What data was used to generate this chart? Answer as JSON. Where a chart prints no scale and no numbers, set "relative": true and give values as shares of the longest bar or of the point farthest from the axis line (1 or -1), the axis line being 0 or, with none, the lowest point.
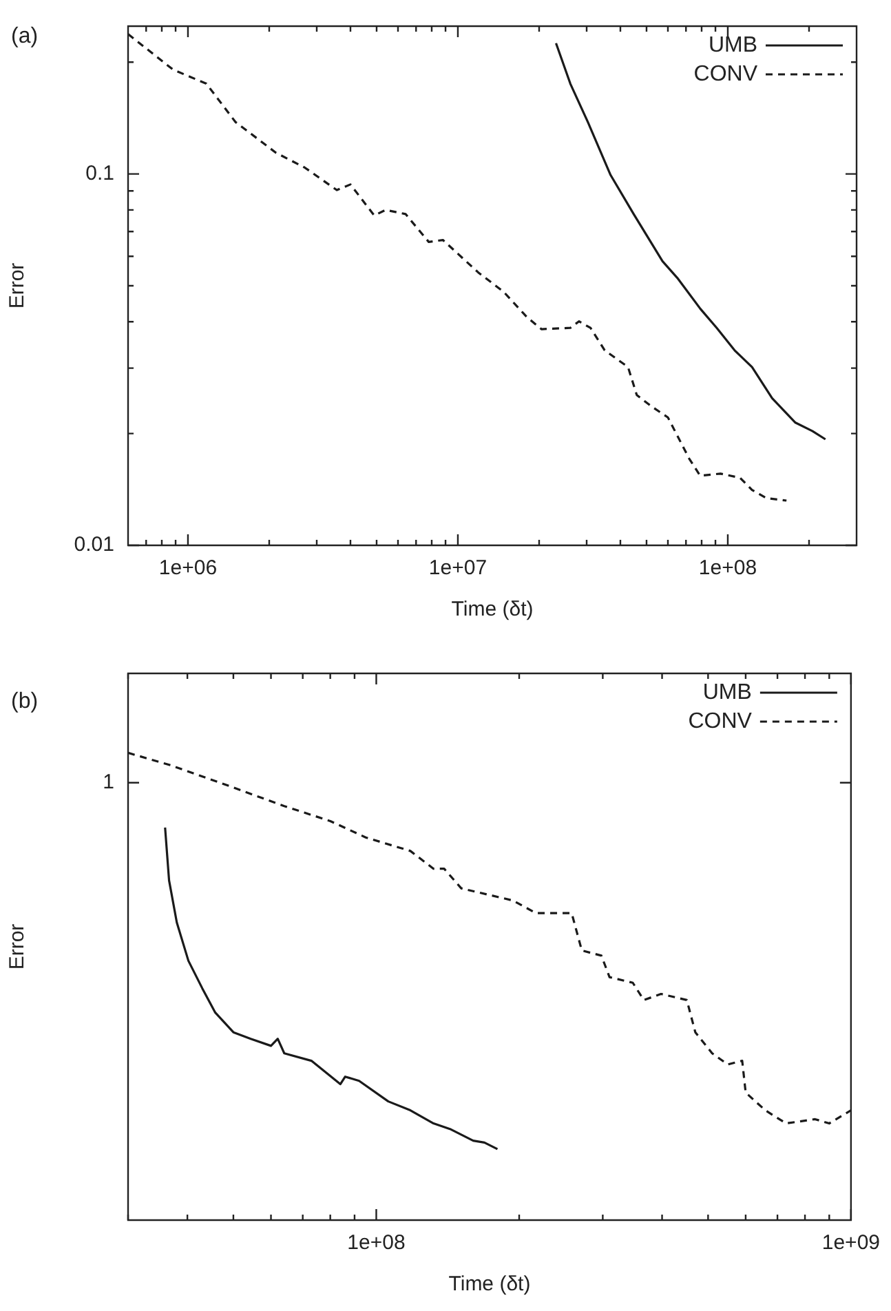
{
  "chart_data": [
    {
      "type": "line",
      "title": "(a)",
      "xlabel": "Time (δt)",
      "ylabel": "Error",
      "log": "xy",
      "grid": false,
      "legend": "top right",
      "marker": "none",
      "xlim": [
        600000,
        300000000
      ],
      "ylim": [
        0.01,
        0.25
      ],
      "xticks": [
        {
          "value": 700000,
          "label": null
        },
        {
          "value": 800000,
          "label": null
        },
        {
          "value": 900000,
          "label": null
        },
        {
          "value": 1000000,
          "label": "1e+06"
        },
        {
          "value": 2000000,
          "label": null
        },
        {
          "value": 3000000,
          "label": null
        },
        {
          "value": 4000000,
          "label": null
        },
        {
          "value": 5000000,
          "label": null
        },
        {
          "value": 6000000,
          "label": null
        },
        {
          "value": 7000000,
          "label": null
        },
        {
          "value": 8000000,
          "label": null
        },
        {
          "value": 9000000,
          "label": null
        },
        {
          "value": 10000000,
          "label": "1e+07"
        },
        {
          "value": 20000000,
          "label": null
        },
        {
          "value": 30000000,
          "label": null
        },
        {
          "value": 40000000,
          "label": null
        },
        {
          "value": 50000000,
          "label": null
        },
        {
          "value": 60000000,
          "label": null
        },
        {
          "value": 70000000,
          "label": null
        },
        {
          "value": 80000000,
          "label": null
        },
        {
          "value": 90000000,
          "label": null
        },
        {
          "value": 100000000,
          "label": "1e+08"
        },
        {
          "value": 200000000,
          "label": null
        }
      ],
      "yticks": [
        0.01,
        {
          "value": 0.02,
          "label": null
        },
        {
          "value": 0.03,
          "label": null
        },
        {
          "value": 0.04,
          "label": null
        },
        {
          "value": 0.05,
          "label": null
        },
        {
          "value": 0.06,
          "label": null
        },
        {
          "value": 0.07,
          "label": null
        },
        {
          "value": 0.08,
          "label": null
        },
        {
          "value": 0.09,
          "label": null
        },
        0.1,
        {
          "value": 0.2,
          "label": null
        }
      ],
      "series": [
        {
          "name": "UMB",
          "color": "#1a1a1a",
          "line_style": "solid",
          "x": [
            23100000,
            26100000,
            30300000,
            36800000,
            44800000,
            57300000,
            65000000,
            79000000,
            91000000,
            106000000,
            123000000,
            146000000,
            178000000,
            206000000,
            230000000
          ],
          "values": [
            0.225,
            0.175,
            0.138,
            0.0993,
            0.078,
            0.0582,
            0.0525,
            0.0434,
            0.0385,
            0.0335,
            0.0302,
            0.0249,
            0.0214,
            0.0203,
            0.0193
          ]
        },
        {
          "name": "CONV",
          "color": "#1a1a1a",
          "line_style": "dashed",
          "x": [
            600000,
            880000,
            1170000,
            1500000,
            2120000,
            2710000,
            3560000,
            4000000,
            4900000,
            5400000,
            6400000,
            7800000,
            8800000,
            11900000,
            14800000,
            18000000,
            20400000,
            26100000,
            28100000,
            31000000,
            35000000,
            42700000,
            46000000,
            52000000,
            60000000,
            72000000,
            79000000,
            94000000,
            111000000,
            123000000,
            139000000,
            165000000
          ],
          "values": [
            0.238,
            0.191,
            0.175,
            0.138,
            0.114,
            0.104,
            0.0905,
            0.0937,
            0.0773,
            0.08,
            0.078,
            0.0656,
            0.0664,
            0.0543,
            0.0481,
            0.0412,
            0.0382,
            0.0385,
            0.0401,
            0.0385,
            0.0335,
            0.0302,
            0.0254,
            0.0237,
            0.0221,
            0.0171,
            0.0154,
            0.0156,
            0.0152,
            0.0141,
            0.0134,
            0.0132
          ]
        }
      ]
    },
    {
      "type": "line",
      "title": "(b)",
      "xlabel": "Time (δt)",
      "ylabel": "Error",
      "log": "x",
      "grid": false,
      "legend": "top right",
      "marker": "none",
      "relative": true,
      "annotations": [
        "1"
      ],
      "xlim": [
        30000000,
        1000000000
      ],
      "xticks": [
        {
          "value": 30000000,
          "label": null
        },
        {
          "value": 40000000,
          "label": null
        },
        {
          "value": 50000000,
          "label": null
        },
        {
          "value": 60000000,
          "label": null
        },
        {
          "value": 70000000,
          "label": null
        },
        {
          "value": 80000000,
          "label": null
        },
        {
          "value": 90000000,
          "label": null
        },
        {
          "value": 100000000,
          "label": "1e+08"
        },
        {
          "value": 200000000,
          "label": null
        },
        {
          "value": 300000000,
          "label": null
        },
        {
          "value": 400000000,
          "label": null
        },
        {
          "value": 500000000,
          "label": null
        },
        {
          "value": 600000000,
          "label": null
        },
        {
          "value": 700000000,
          "label": null
        },
        {
          "value": 800000000,
          "label": null
        },
        {
          "value": 900000000,
          "label": null
        },
        {
          "value": 1000000000,
          "label": "1e+09"
        }
      ],
      "series": [
        {
          "name": "UMB",
          "color": "#1a1a1a",
          "line_style": "solid",
          "x": [
            35900000,
            36600000,
            38000000,
            40200000,
            43000000,
            45800000,
            50000000,
            54400000,
            60000000,
            62000000,
            64000000,
            73000000,
            84000000,
            86000000,
            92000000,
            106000000,
            118000000,
            132000000,
            143000000,
            160000000,
            169000000,
            180000000
          ],
          "values": [
            0.84,
            0.727,
            0.637,
            0.555,
            0.496,
            0.444,
            0.402,
            0.388,
            0.373,
            0.388,
            0.357,
            0.341,
            0.291,
            0.307,
            0.298,
            0.254,
            0.235,
            0.207,
            0.195,
            0.17,
            0.166,
            0.152
          ]
        },
        {
          "name": "CONV",
          "color": "#1a1a1a",
          "line_style": "dashed",
          "x": [
            30000000,
            37000000,
            49000000,
            64000000,
            80000000,
            95000000,
            118000000,
            132000000,
            139000000,
            151000000,
            194000000,
            217000000,
            258000000,
            271000000,
            298000000,
            310000000,
            347000000,
            366000000,
            398000000,
            451000000,
            470000000,
            510000000,
            550000000,
            590000000,
            600000000,
            660000000,
            730000000,
            840000000,
            900000000,
            1000000000
          ],
          "values": [
            1,
            0.973,
            0.929,
            0.886,
            0.854,
            0.819,
            0.79,
            0.752,
            0.752,
            0.71,
            0.684,
            0.657,
            0.657,
            0.577,
            0.566,
            0.52,
            0.508,
            0.471,
            0.484,
            0.471,
            0.402,
            0.357,
            0.333,
            0.341,
            0.273,
            0.235,
            0.207,
            0.216,
            0.207,
            0.235
          ]
        }
      ]
    }
  ]
}
